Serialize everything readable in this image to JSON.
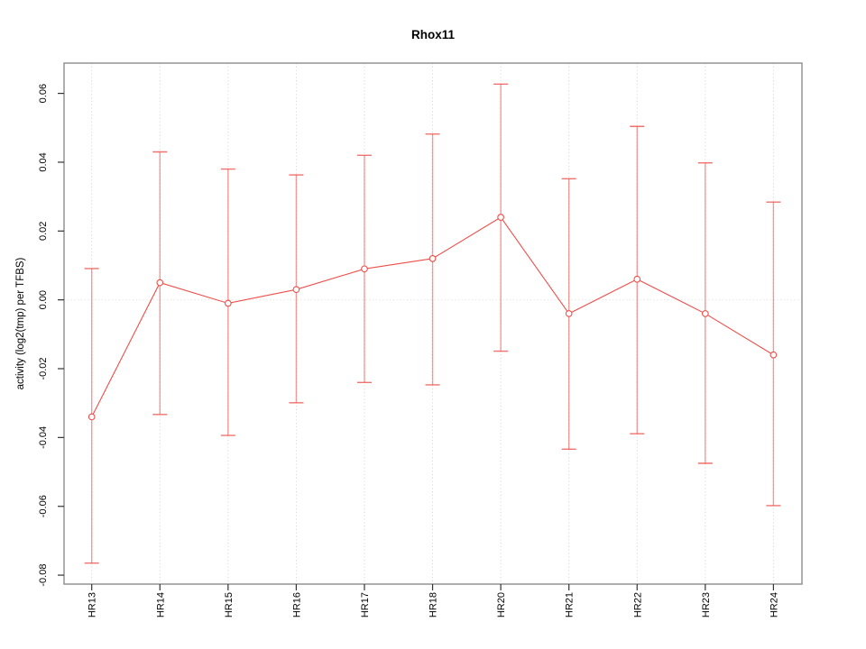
{
  "chart_data": {
    "type": "line",
    "title": "Rhox11",
    "xlabel": "",
    "ylabel": "activity (log2(tmp) per TFBS)",
    "categories": [
      "HR13",
      "HR14",
      "HR15",
      "HR16",
      "HR17",
      "HR18",
      "HR20",
      "HR21",
      "HR22",
      "HR23",
      "HR24"
    ],
    "series": [
      {
        "name": "activity",
        "values": [
          -0.034,
          0.005,
          -0.001,
          0.003,
          0.009,
          0.012,
          0.024,
          -0.004,
          0.006,
          -0.004,
          -0.016
        ],
        "error_low": [
          -0.0765,
          -0.0333,
          -0.0394,
          -0.0299,
          -0.024,
          -0.0247,
          -0.0149,
          -0.0434,
          -0.0389,
          -0.0475,
          -0.0598
        ],
        "error_high": [
          0.0091,
          0.043,
          0.038,
          0.0363,
          0.042,
          0.0482,
          0.0627,
          0.0352,
          0.0504,
          0.0398,
          0.0284
        ]
      }
    ],
    "yticks": [
      -0.08,
      -0.06,
      -0.04,
      -0.02,
      0.0,
      0.02,
      0.04,
      0.06
    ],
    "ylim": [
      -0.0826,
      0.0688
    ],
    "marker": "open-circle",
    "grid": "vertical-dotted-per-category-plus-dotted-zero-line",
    "legend": "none",
    "colors": {
      "line": "#ee4f4a",
      "error_bar": "#ee4f4a",
      "grid": "#d4d4d4",
      "zero_line": "#dedede",
      "box_border": "#8c8c8c",
      "tick": "#333333",
      "marker_fill": "#ffffff"
    }
  }
}
